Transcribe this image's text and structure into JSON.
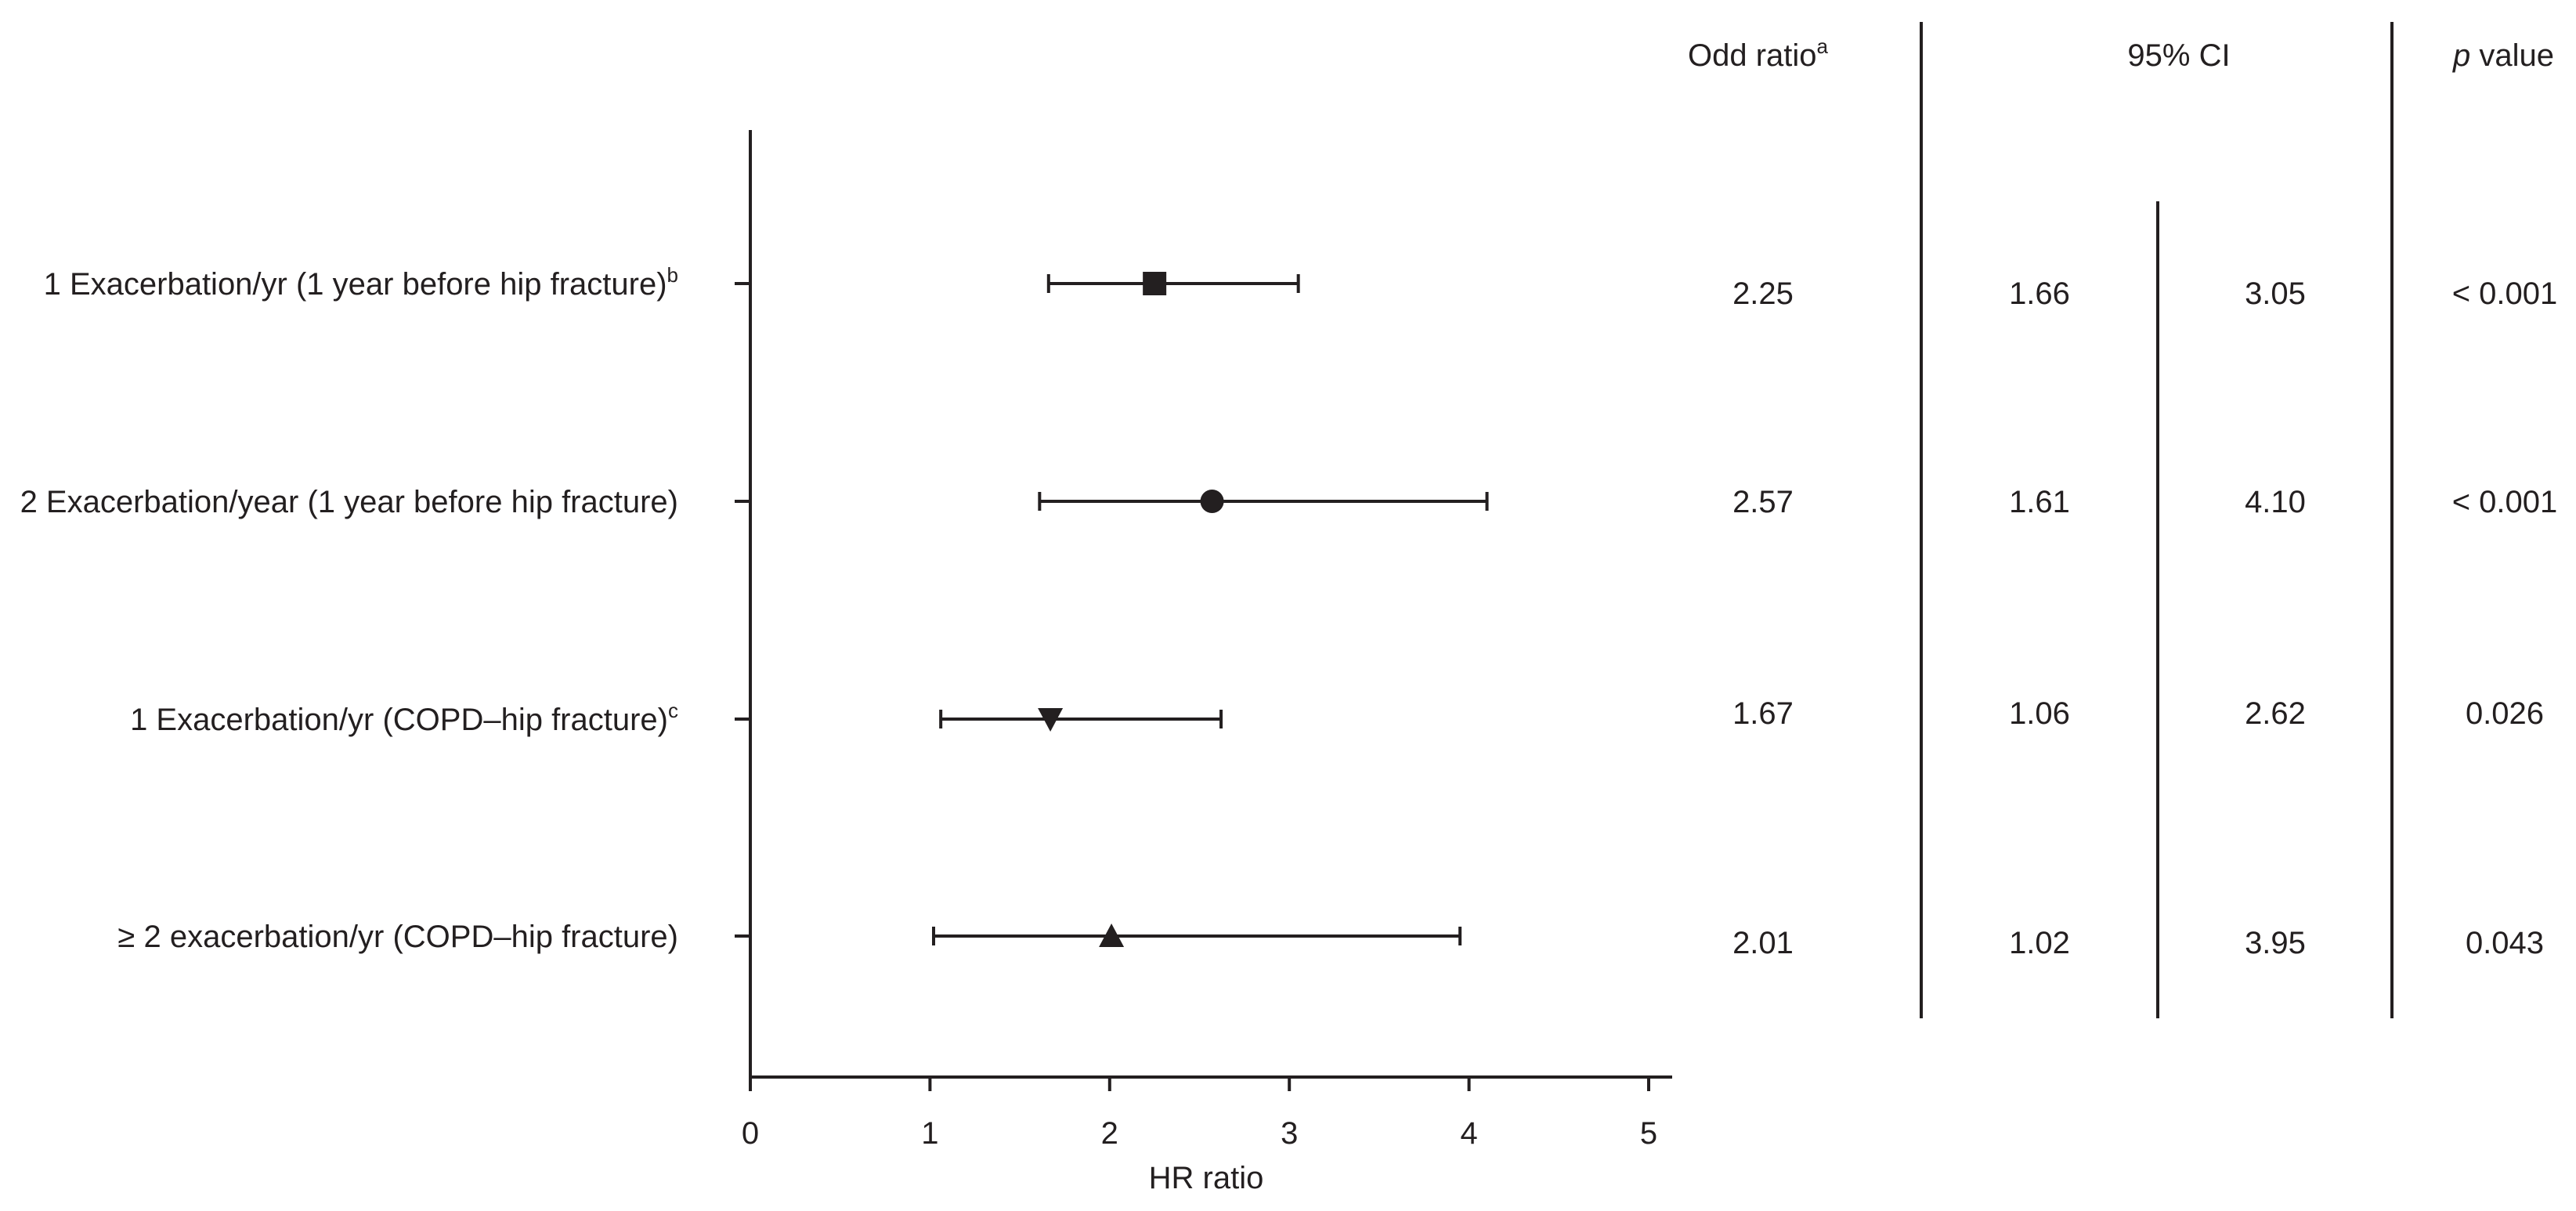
{
  "chart_data": {
    "type": "forest",
    "xlabel": "HR ratio",
    "xlim": [
      0,
      5
    ],
    "x_ticks": [
      "0",
      "1",
      "2",
      "3",
      "4",
      "5"
    ],
    "grid": false,
    "table_headers": {
      "odds_ratio": "Odd ratio",
      "odds_ratio_sup": "a",
      "ci": "95% CI",
      "p_value_italic": "p",
      "p_value_rest": " value"
    },
    "rows": [
      {
        "label": "1 Exacerbation/yr (1 year before hip fracture)",
        "label_sup": "b",
        "marker": "square",
        "estimate": 2.25,
        "ci_low": 1.66,
        "ci_high": 3.05,
        "odds_ratio_text": "2.25",
        "ci_low_text": "1.66",
        "ci_high_text": "3.05",
        "p_value_text": "< 0.001"
      },
      {
        "label": "2 Exacerbation/year (1 year before hip fracture)",
        "label_sup": "",
        "marker": "circle",
        "estimate": 2.57,
        "ci_low": 1.61,
        "ci_high": 4.1,
        "odds_ratio_text": "2.57",
        "ci_low_text": "1.61",
        "ci_high_text": "4.10",
        "p_value_text": "< 0.001"
      },
      {
        "label": "1 Exacerbation/yr (COPD–hip fracture)",
        "label_sup": "c",
        "marker": "triangle-down",
        "estimate": 1.67,
        "ci_low": 1.06,
        "ci_high": 2.62,
        "odds_ratio_text": "1.67",
        "ci_low_text": "1.06",
        "ci_high_text": "2.62",
        "p_value_text": "0.026"
      },
      {
        "label": "≥ 2 exacerbation/yr (COPD–hip fracture)",
        "label_sup": "",
        "marker": "triangle-up",
        "estimate": 2.01,
        "ci_low": 1.02,
        "ci_high": 3.95,
        "odds_ratio_text": "2.01",
        "ci_low_text": "1.02",
        "ci_high_text": "3.95",
        "p_value_text": "0.043"
      }
    ]
  }
}
